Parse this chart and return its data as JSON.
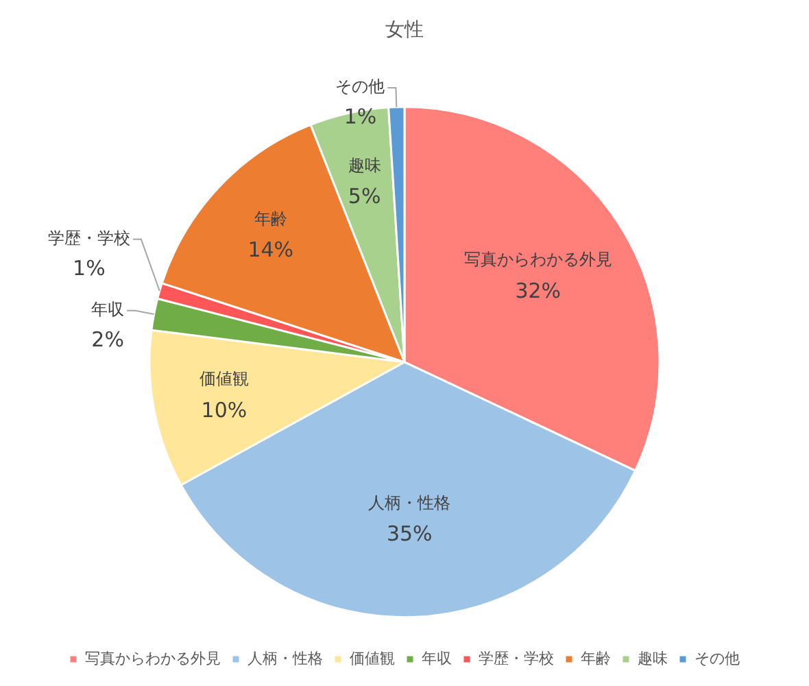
{
  "chart_data": {
    "type": "pie",
    "title": "女性",
    "categories": [
      "写真からわかる外見",
      "人柄・性格",
      "価値観",
      "年収",
      "学歴・学校",
      "年齢",
      "趣味",
      "その他"
    ],
    "values": [
      32,
      35,
      10,
      2,
      1,
      14,
      5,
      1
    ],
    "value_labels": [
      "32%",
      "35%",
      "10%",
      "2%",
      "1%",
      "14%",
      "5%",
      "1%"
    ],
    "colors": [
      "#ff7f7a",
      "#9dc3e6",
      "#ffe699",
      "#70ad47",
      "#ff5757",
      "#ed7d31",
      "#a9d18e",
      "#5b9bd5"
    ],
    "legend": "bottom"
  }
}
